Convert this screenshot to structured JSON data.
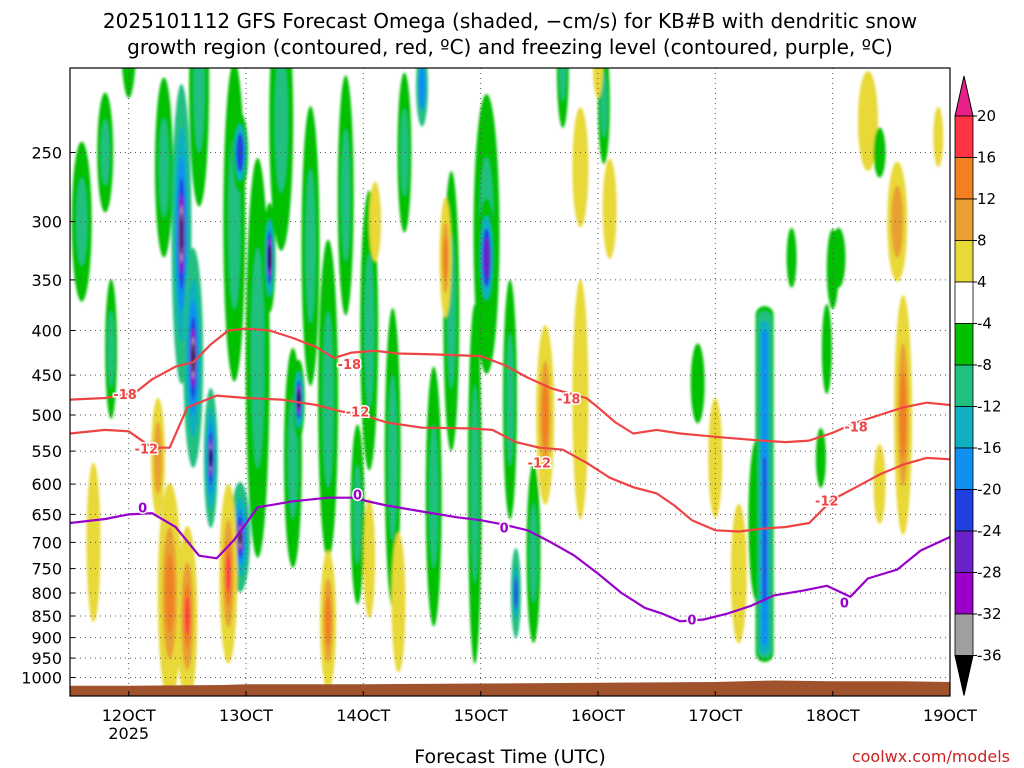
{
  "chart_data": {
    "type": "heatmap",
    "title_lines": [
      "2025101112 GFS Forecast Omega (shaded, −cm/s) for KB#B with dendritic snow",
      "growth region (contoured, red, ºC) and freezing level (contoured, purple, ºC)"
    ],
    "xlabel": "Forecast Time (UTC)",
    "credit": "coolwx.com/models",
    "x_ticks": [
      {
        "value": 12,
        "label": "12OCT",
        "sublabel": "2025"
      },
      {
        "value": 13,
        "label": "13OCT"
      },
      {
        "value": 14,
        "label": "14OCT"
      },
      {
        "value": 15,
        "label": "15OCT"
      },
      {
        "value": 16,
        "label": "16OCT"
      },
      {
        "value": 17,
        "label": "17OCT"
      },
      {
        "value": 18,
        "label": "18OCT"
      },
      {
        "value": 19,
        "label": "19OCT"
      }
    ],
    "xlim": [
      11.5,
      19.0
    ],
    "y_ticks": [
      250,
      300,
      350,
      400,
      450,
      500,
      550,
      600,
      650,
      700,
      750,
      800,
      850,
      900,
      950,
      1000
    ],
    "ylim_hpa": [
      200,
      1050
    ],
    "y_scale": "log-pressure",
    "grid": true,
    "colorbar": {
      "labels": [
        "20",
        "16",
        "12",
        "8",
        "4",
        "-4",
        "-8",
        "-12",
        "-16",
        "-20",
        "-24",
        "-28",
        "-32",
        "-36"
      ],
      "bins": [
        {
          "range": [
            16,
            20
          ],
          "color": "#ff3344"
        },
        {
          "range": [
            12,
            16
          ],
          "color": "#f08020"
        },
        {
          "range": [
            8,
            12
          ],
          "color": "#e8a030"
        },
        {
          "range": [
            4,
            8
          ],
          "color": "#e8d838"
        },
        {
          "range": [
            -4,
            4
          ],
          "color": "#ffffff"
        },
        {
          "range": [
            -8,
            -4
          ],
          "color": "#00c000"
        },
        {
          "range": [
            -12,
            -8
          ],
          "color": "#20c080"
        },
        {
          "range": [
            -16,
            -12
          ],
          "color": "#10b0c0"
        },
        {
          "range": [
            -20,
            -16
          ],
          "color": "#1090f0"
        },
        {
          "range": [
            -24,
            -20
          ],
          "color": "#2040e0"
        },
        {
          "range": [
            -28,
            -24
          ],
          "color": "#6a22c8"
        },
        {
          "range": [
            -32,
            -28
          ],
          "color": "#9a00c8"
        },
        {
          "range": [
            -36,
            -32
          ],
          "color": "#a0a0a0"
        }
      ],
      "over_color": "#e8208a",
      "under_color": "#000000"
    },
    "terrain_color": "#a0522d",
    "contour_colors": {
      "dgz": "#ee4444",
      "freezing": "#9900cc"
    },
    "contours": [
      {
        "name": "-18",
        "color": "#ee4444",
        "labels": [
          {
            "x": 11.97,
            "p": 474,
            "text": "-18"
          },
          {
            "x": 13.88,
            "p": 438,
            "text": "-18"
          },
          {
            "x": 15.75,
            "p": 480,
            "text": "-18"
          },
          {
            "x": 18.2,
            "p": 517,
            "text": "-18"
          }
        ],
        "points": [
          [
            11.5,
            480
          ],
          [
            11.8,
            478
          ],
          [
            12.05,
            472
          ],
          [
            12.2,
            455
          ],
          [
            12.4,
            440
          ],
          [
            12.55,
            435
          ],
          [
            12.7,
            415
          ],
          [
            12.85,
            400
          ],
          [
            13.0,
            398
          ],
          [
            13.2,
            400
          ],
          [
            13.4,
            408
          ],
          [
            13.6,
            418
          ],
          [
            13.75,
            430
          ],
          [
            13.9,
            424
          ],
          [
            14.1,
            422
          ],
          [
            14.3,
            425
          ],
          [
            14.6,
            426
          ],
          [
            15.0,
            428
          ],
          [
            15.2,
            438
          ],
          [
            15.4,
            453
          ],
          [
            15.6,
            466
          ],
          [
            15.75,
            472
          ],
          [
            15.9,
            478
          ],
          [
            16.0,
            490
          ],
          [
            16.15,
            510
          ],
          [
            16.3,
            525
          ],
          [
            16.5,
            520
          ],
          [
            16.7,
            525
          ],
          [
            16.9,
            528
          ],
          [
            17.1,
            531
          ],
          [
            17.4,
            535
          ],
          [
            17.6,
            537
          ],
          [
            17.8,
            535
          ],
          [
            18.0,
            524
          ],
          [
            18.2,
            510
          ],
          [
            18.4,
            500
          ],
          [
            18.6,
            490
          ],
          [
            18.8,
            484
          ],
          [
            19.0,
            487
          ]
        ]
      },
      {
        "name": "-12",
        "color": "#ee4444",
        "labels": [
          {
            "x": 12.15,
            "p": 548,
            "text": "-12"
          },
          {
            "x": 13.95,
            "p": 497,
            "text": "-12"
          },
          {
            "x": 15.5,
            "p": 568,
            "text": "-12"
          },
          {
            "x": 17.95,
            "p": 628,
            "text": "-12"
          }
        ],
        "points": [
          [
            11.5,
            525
          ],
          [
            11.8,
            520
          ],
          [
            12.0,
            522
          ],
          [
            12.2,
            545
          ],
          [
            12.35,
            545
          ],
          [
            12.5,
            490
          ],
          [
            12.75,
            475
          ],
          [
            13.0,
            478
          ],
          [
            13.3,
            480
          ],
          [
            13.6,
            487
          ],
          [
            13.8,
            495
          ],
          [
            14.0,
            500
          ],
          [
            14.2,
            510
          ],
          [
            14.5,
            517
          ],
          [
            14.9,
            518
          ],
          [
            15.1,
            520
          ],
          [
            15.3,
            537
          ],
          [
            15.5,
            545
          ],
          [
            15.7,
            548
          ],
          [
            15.9,
            567
          ],
          [
            16.1,
            590
          ],
          [
            16.3,
            605
          ],
          [
            16.5,
            615
          ],
          [
            16.65,
            635
          ],
          [
            16.8,
            660
          ],
          [
            17.0,
            678
          ],
          [
            17.2,
            680
          ],
          [
            17.4,
            675
          ],
          [
            17.6,
            672
          ],
          [
            17.8,
            665
          ],
          [
            18.0,
            625
          ],
          [
            18.2,
            605
          ],
          [
            18.4,
            585
          ],
          [
            18.6,
            570
          ],
          [
            18.8,
            560
          ],
          [
            19.0,
            562
          ]
        ]
      },
      {
        "name": "0",
        "color": "#9900cc",
        "labels": [
          {
            "x": 12.12,
            "p": 640,
            "text": "0"
          },
          {
            "x": 13.95,
            "p": 618,
            "text": "0"
          },
          {
            "x": 15.2,
            "p": 675,
            "text": "0"
          },
          {
            "x": 16.8,
            "p": 860,
            "text": "0"
          },
          {
            "x": 18.1,
            "p": 822,
            "text": "0"
          }
        ],
        "points": [
          [
            11.5,
            665
          ],
          [
            11.8,
            658
          ],
          [
            12.0,
            650
          ],
          [
            12.2,
            648
          ],
          [
            12.4,
            672
          ],
          [
            12.6,
            725
          ],
          [
            12.75,
            730
          ],
          [
            12.9,
            695
          ],
          [
            13.1,
            638
          ],
          [
            13.4,
            628
          ],
          [
            13.7,
            622
          ],
          [
            13.9,
            622
          ],
          [
            14.2,
            635
          ],
          [
            14.5,
            645
          ],
          [
            14.8,
            655
          ],
          [
            15.0,
            660
          ],
          [
            15.2,
            668
          ],
          [
            15.4,
            678
          ],
          [
            15.6,
            700
          ],
          [
            15.8,
            725
          ],
          [
            16.0,
            760
          ],
          [
            16.2,
            800
          ],
          [
            16.4,
            832
          ],
          [
            16.55,
            845
          ],
          [
            16.7,
            862
          ],
          [
            16.9,
            858
          ],
          [
            17.1,
            845
          ],
          [
            17.3,
            828
          ],
          [
            17.5,
            805
          ],
          [
            17.75,
            795
          ],
          [
            17.95,
            785
          ],
          [
            18.15,
            808
          ],
          [
            18.3,
            770
          ],
          [
            18.55,
            752
          ],
          [
            18.75,
            715
          ],
          [
            19.0,
            690
          ]
        ]
      }
    ]
  }
}
